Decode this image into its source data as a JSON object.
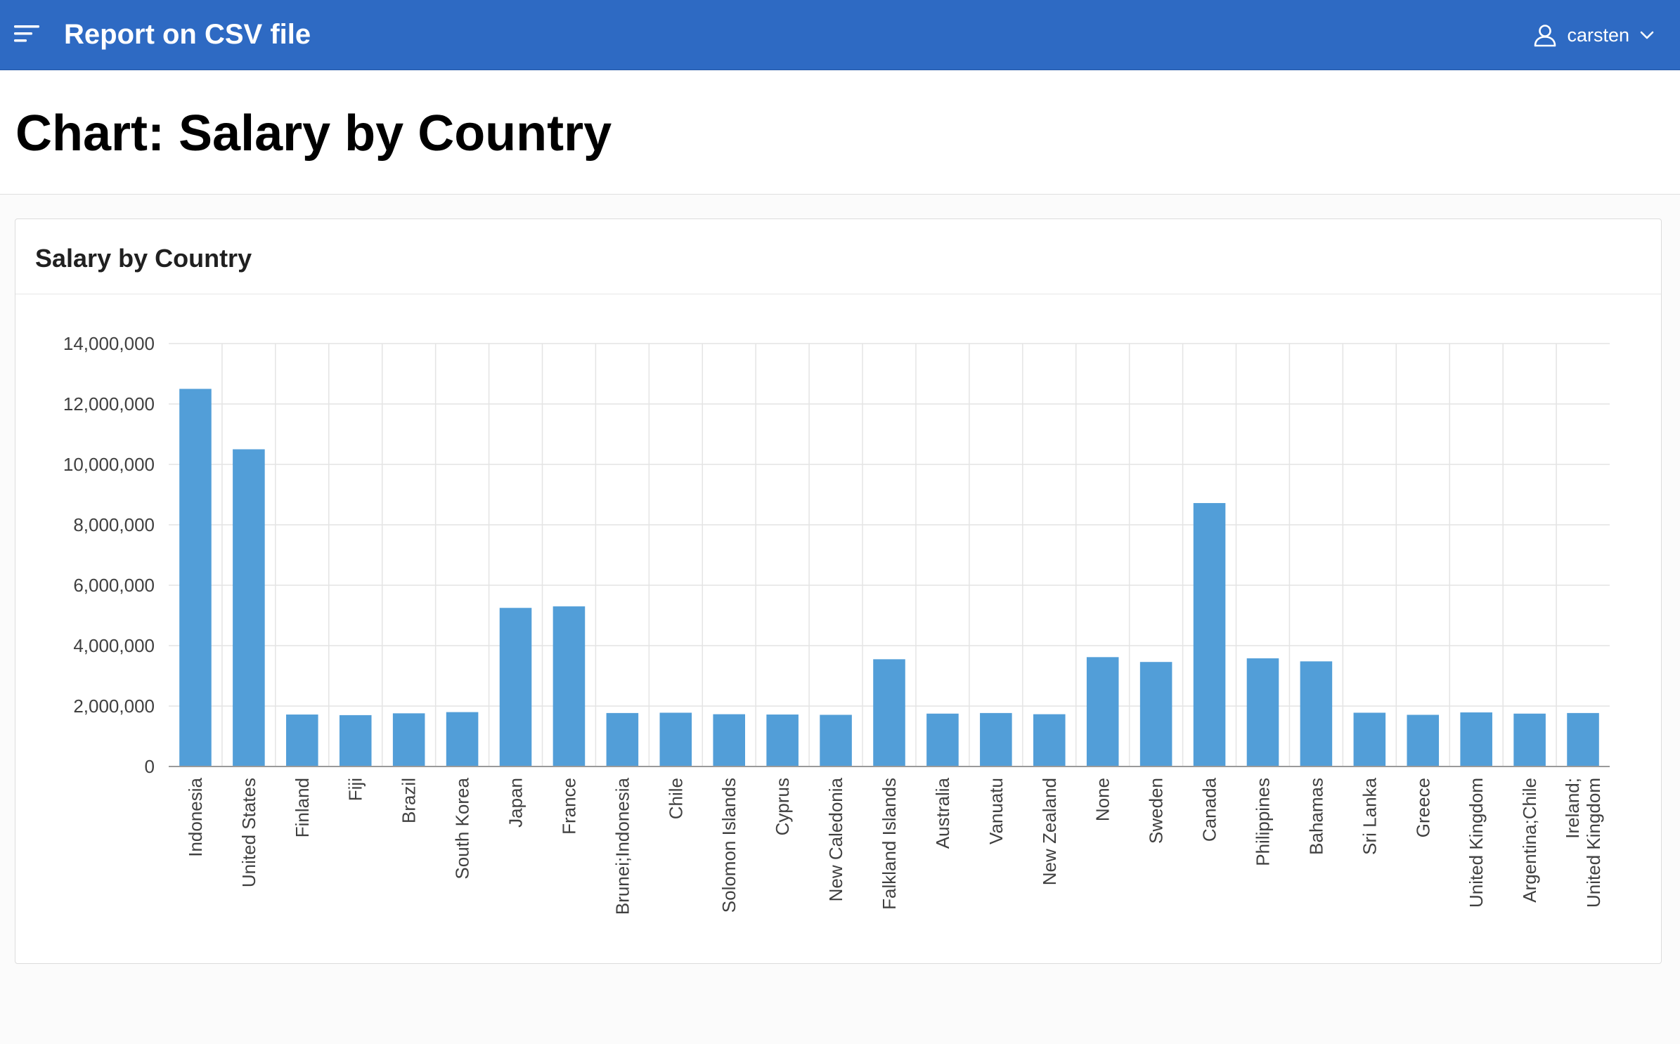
{
  "header": {
    "app_title": "Report on CSV file",
    "menu_icon": "hamburger-menu-icon",
    "user": {
      "name": "carsten",
      "icon": "user-icon",
      "dropdown_icon": "chevron-down-icon"
    },
    "color": "#2e6ac3"
  },
  "page": {
    "title": "Chart: Salary by Country"
  },
  "region": {
    "title": "Salary by Country"
  },
  "chart_data": {
    "type": "bar",
    "title": "",
    "xlabel": "",
    "ylabel": "",
    "ylim": [
      0,
      14000000
    ],
    "yticks": [
      {
        "value": 0,
        "label": "0"
      },
      {
        "value": 2000000,
        "label": "2,000,000"
      },
      {
        "value": 4000000,
        "label": "4,000,000"
      },
      {
        "value": 6000000,
        "label": "6,000,000"
      },
      {
        "value": 8000000,
        "label": "8,000,000"
      },
      {
        "value": 10000000,
        "label": "10,000,000"
      },
      {
        "value": 12000000,
        "label": "12,000,000"
      },
      {
        "value": 14000000,
        "label": "14,000,000"
      }
    ],
    "grid": true,
    "bar_color": "#529ed8",
    "categories": [
      "Indonesia",
      "United States",
      "Finland",
      "Fiji",
      "Brazil",
      "South Korea",
      "Japan",
      "France",
      "Brunei;Indonesia",
      "Chile",
      "Solomon Islands",
      "Cyprus",
      "New Caledonia",
      "Falkland Islands",
      "Australia",
      "Vanuatu",
      "New Zealand",
      "None",
      "Sweden",
      "Canada",
      "Philippines",
      "Bahamas",
      "Sri Lanka",
      "Greece",
      "United Kingdom",
      "Argentina;Chile",
      "Ireland;United Kingdom"
    ],
    "values": [
      12500000,
      10500000,
      1720000,
      1700000,
      1760000,
      1800000,
      5250000,
      5300000,
      1770000,
      1780000,
      1730000,
      1720000,
      1710000,
      3550000,
      1750000,
      1770000,
      1730000,
      3620000,
      3460000,
      8720000,
      3580000,
      3480000,
      1780000,
      1710000,
      1790000,
      1750000,
      1770000
    ]
  }
}
